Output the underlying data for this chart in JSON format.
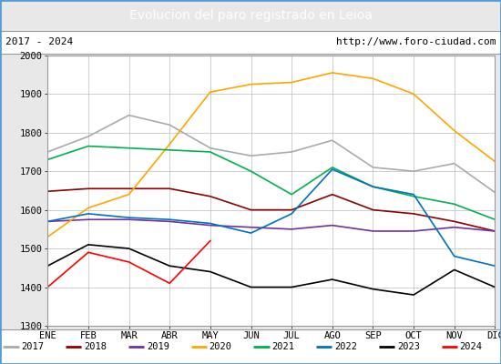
{
  "title": "Evolucion del paro registrado en Leioa",
  "title_bgcolor": "#5b9bd5",
  "title_color": "white",
  "subtitle_left": "2017 - 2024",
  "subtitle_right": "http://www.foro-ciudad.com",
  "months": [
    "ENE",
    "FEB",
    "MAR",
    "ABR",
    "MAY",
    "JUN",
    "JUL",
    "AGO",
    "SEP",
    "OCT",
    "NOV",
    "DIC"
  ],
  "ylim": [
    1300,
    2000
  ],
  "yticks": [
    1300,
    1400,
    1500,
    1600,
    1700,
    1800,
    1900,
    2000
  ],
  "series": {
    "2017": {
      "color": "#aaaaaa",
      "values": [
        1750,
        1790,
        1845,
        1820,
        1760,
        1740,
        1750,
        1780,
        1710,
        1700,
        1720,
        1645
      ]
    },
    "2018": {
      "color": "#8b0000",
      "values": [
        1648,
        1655,
        1655,
        1655,
        1635,
        1600,
        1600,
        1640,
        1600,
        1590,
        1570,
        1545
      ]
    },
    "2019": {
      "color": "#7030a0",
      "values": [
        1570,
        1575,
        1575,
        1570,
        1560,
        1555,
        1550,
        1560,
        1545,
        1545,
        1555,
        1545
      ]
    },
    "2020": {
      "color": "#ffa500",
      "values": [
        1530,
        1605,
        1640,
        1770,
        1905,
        1925,
        1930,
        1955,
        1940,
        1900,
        1805,
        1725
      ]
    },
    "2021": {
      "color": "#00b050",
      "values": [
        1730,
        1765,
        1760,
        1755,
        1750,
        1700,
        1640,
        1710,
        1660,
        1635,
        1615,
        1575
      ]
    },
    "2022": {
      "color": "#0070c0",
      "values": [
        1570,
        1590,
        1580,
        1575,
        1565,
        1540,
        1590,
        1705,
        1660,
        1640,
        1480,
        1455
      ]
    },
    "2023": {
      "color": "#000000",
      "values": [
        1455,
        1510,
        1500,
        1455,
        1440,
        1400,
        1400,
        1420,
        1395,
        1380,
        1445,
        1400
      ]
    },
    "2024": {
      "color": "#ff0000",
      "values": [
        1400,
        1490,
        1465,
        1410,
        1520,
        null,
        null,
        null,
        null,
        null,
        null,
        null
      ]
    }
  },
  "legend_order": [
    "2017",
    "2018",
    "2019",
    "2020",
    "2021",
    "2022",
    "2023",
    "2024"
  ],
  "outer_bg": "#e8e8e8",
  "plot_bg_color": "#dcdcdc",
  "inner_bg_color": "#ffffff",
  "grid_color": "#bbbbbb",
  "border_color": "#5b9bd5"
}
